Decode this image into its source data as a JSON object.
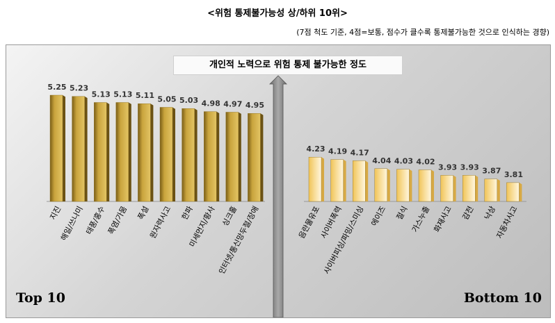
{
  "title": "<위험 통제불가능성 상/하위 10위>",
  "subtitle": "(7점 척도 기준, 4점=보통, 점수가 클수록 통제불가능한 것으로 인식하는 경향)",
  "chart_title": "개인적 노력으로 위험 통제 불가능한 정도",
  "top_label": "Top 10",
  "bottom_label": "Bottom 10",
  "colors": {
    "top_bar_front": "#b5922c",
    "top_bar_light": "#e2c261",
    "bottom_bar_front": "#f2cc6c",
    "bottom_bar_light": "#fdf2d4",
    "axis": "#808080"
  },
  "chart_data": [
    {
      "type": "bar",
      "name": "Top 10",
      "categories": [
        "지진",
        "해일/쓰나미",
        "태풍/홍수",
        "폭염/가뭄",
        "폭설",
        "원자력사고",
        "한파",
        "미세먼지/황사",
        "싱크홀",
        "인터넷/통신망두절/장애"
      ],
      "values": [
        5.25,
        5.23,
        5.13,
        5.13,
        5.11,
        5.05,
        5.03,
        4.98,
        4.97,
        4.95
      ]
    },
    {
      "type": "bar",
      "name": "Bottom 10",
      "categories": [
        "음란물유포",
        "사이버폭력",
        "사이버피싱/파밍/스미싱",
        "에이즈",
        "절식",
        "가스누출",
        "화재사고",
        "감전",
        "낙상",
        "자동차사고"
      ],
      "values": [
        4.23,
        4.19,
        4.17,
        4.04,
        4.03,
        4.02,
        3.93,
        3.93,
        3.87,
        3.81
      ]
    }
  ]
}
